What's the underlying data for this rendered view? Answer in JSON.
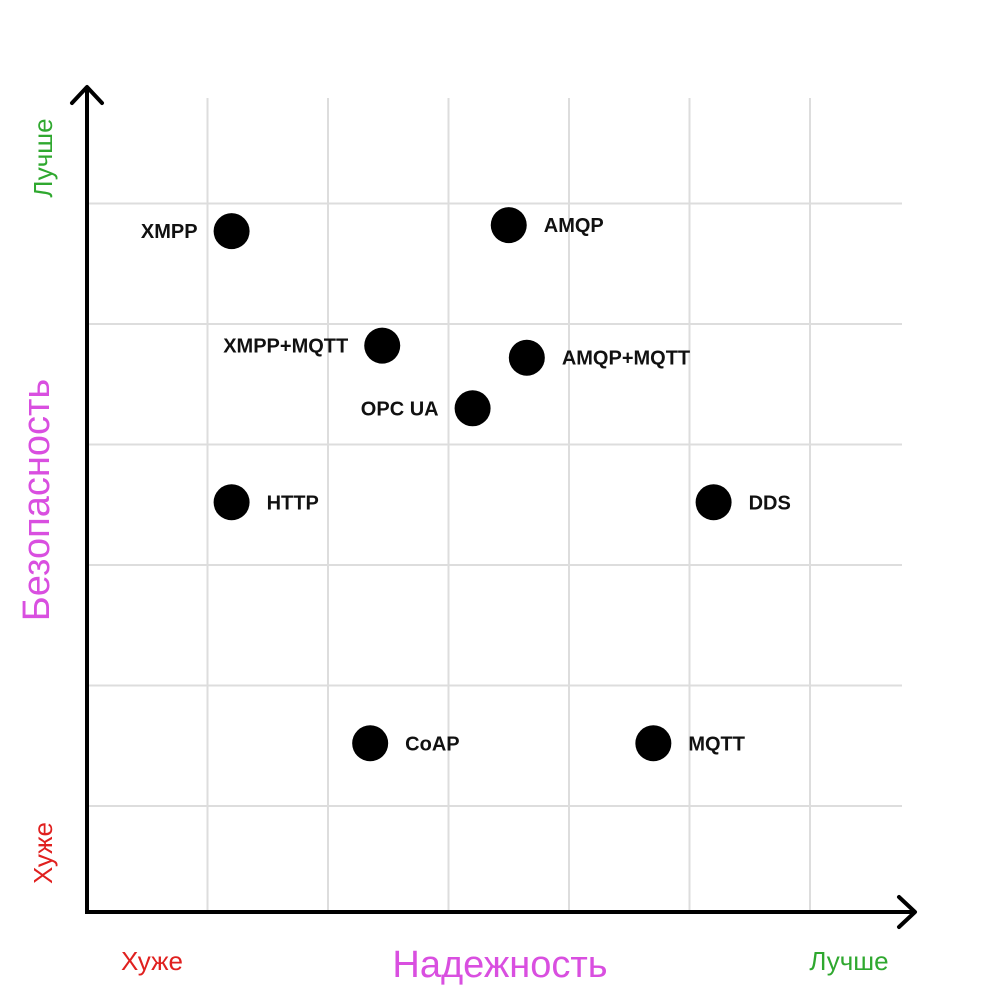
{
  "chart_data": {
    "type": "scatter",
    "xlabel": "Надежность",
    "ylabel": "Безопасность",
    "x_low_label": "Хуже",
    "x_high_label": "Лучше",
    "y_low_label": "Хуже",
    "y_high_label": "Лучше",
    "xlim": [
      0,
      6.75
    ],
    "ylim": [
      0,
      6.75
    ],
    "grid": true,
    "points": [
      {
        "label": "XMPP",
        "x": 1.2,
        "y": 5.65
      },
      {
        "label": "AMQP",
        "x": 3.5,
        "y": 5.7
      },
      {
        "label": "XMPP+MQTT",
        "x": 2.45,
        "y": 4.7
      },
      {
        "label": "AMQP+MQTT",
        "x": 3.65,
        "y": 4.6
      },
      {
        "label": "OPC UA",
        "x": 3.2,
        "y": 4.18
      },
      {
        "label": "HTTP",
        "x": 1.2,
        "y": 3.4
      },
      {
        "label": "DDS",
        "x": 5.2,
        "y": 3.4
      },
      {
        "label": "CoAP",
        "x": 2.35,
        "y": 1.4
      },
      {
        "label": "MQTT",
        "x": 4.7,
        "y": 1.4
      }
    ]
  },
  "colors": {
    "axis_title": "#d94fe0",
    "worse": "#e0201f",
    "better": "#2fa82f",
    "point": "#000000",
    "grid": "#dddddd",
    "axis": "#000000"
  }
}
